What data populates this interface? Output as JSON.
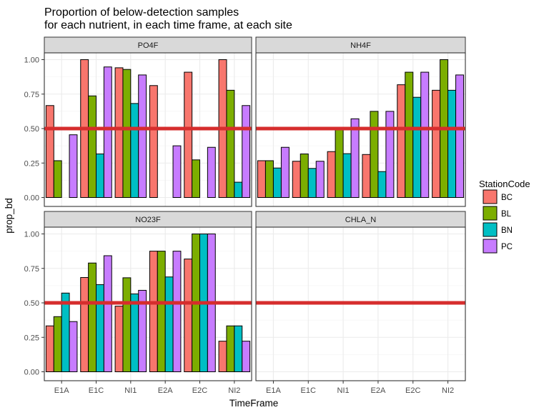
{
  "chart_data": {
    "type": "bar",
    "title_lines": [
      "Proportion of below-detection samples",
      "for each nutrient, in each time frame, at each site"
    ],
    "xlabel": "TimeFrame",
    "ylabel": "prop_bd",
    "categories": [
      "E1A",
      "E1C",
      "NI1",
      "E2A",
      "E2C",
      "NI2"
    ],
    "ylim": [
      0,
      1
    ],
    "y_ticks": [
      "0.00",
      "0.25",
      "0.50",
      "0.75",
      "1.00"
    ],
    "reference_line": 0.5,
    "reference_color": "#d62d2d",
    "grid": true,
    "legend": {
      "title": "StationCode",
      "position": "right",
      "entries": [
        {
          "label": "BC",
          "color": "#f8766d"
        },
        {
          "label": "BL",
          "color": "#7cae00"
        },
        {
          "label": "BN",
          "color": "#00bfc4"
        },
        {
          "label": "PC",
          "color": "#c77cff"
        }
      ]
    },
    "panels": [
      {
        "label": "PO4F",
        "series": [
          {
            "name": "BC",
            "values": [
              0.667,
              1.0,
              0.941,
              0.812,
              0.909,
              1.0
            ]
          },
          {
            "name": "BL",
            "values": [
              0.267,
              0.737,
              0.929,
              0.0,
              0.273,
              0.778
            ]
          },
          {
            "name": "BN",
            "values": [
              0.0,
              0.316,
              0.682,
              0.0,
              0.0,
              0.111
            ]
          },
          {
            "name": "PC",
            "values": [
              0.455,
              0.947,
              0.889,
              0.375,
              0.364,
              0.667
            ]
          }
        ]
      },
      {
        "label": "NH4F",
        "series": [
          {
            "name": "BC",
            "values": [
              0.267,
              0.263,
              0.333,
              0.312,
              0.818,
              0.778
            ]
          },
          {
            "name": "BL",
            "values": [
              0.267,
              0.316,
              0.5,
              0.625,
              0.909,
              1.0
            ]
          },
          {
            "name": "BN",
            "values": [
              0.214,
              0.211,
              0.318,
              0.188,
              0.727,
              0.778
            ]
          },
          {
            "name": "PC",
            "values": [
              0.364,
              0.263,
              0.571,
              0.625,
              0.909,
              0.889
            ]
          }
        ]
      },
      {
        "label": "NO23F",
        "series": [
          {
            "name": "BC",
            "values": [
              0.333,
              0.684,
              0.476,
              0.875,
              0.818,
              0.222
            ]
          },
          {
            "name": "BL",
            "values": [
              0.4,
              0.789,
              0.682,
              0.875,
              1.0,
              0.333
            ]
          },
          {
            "name": "BN",
            "values": [
              0.571,
              0.632,
              0.565,
              0.688,
              1.0,
              0.333
            ]
          },
          {
            "name": "PC",
            "values": [
              0.364,
              0.842,
              0.591,
              0.875,
              1.0,
              0.222
            ]
          }
        ]
      },
      {
        "label": "CHLA_N",
        "series": [
          {
            "name": "BC",
            "values": [
              0,
              0,
              0,
              0,
              0,
              0
            ]
          },
          {
            "name": "BL",
            "values": [
              0,
              0,
              0,
              0,
              0,
              0
            ]
          },
          {
            "name": "BN",
            "values": [
              0,
              0,
              0,
              0,
              0,
              0
            ]
          },
          {
            "name": "PC",
            "values": [
              0,
              0,
              0,
              0,
              0,
              0
            ]
          }
        ]
      }
    ]
  }
}
